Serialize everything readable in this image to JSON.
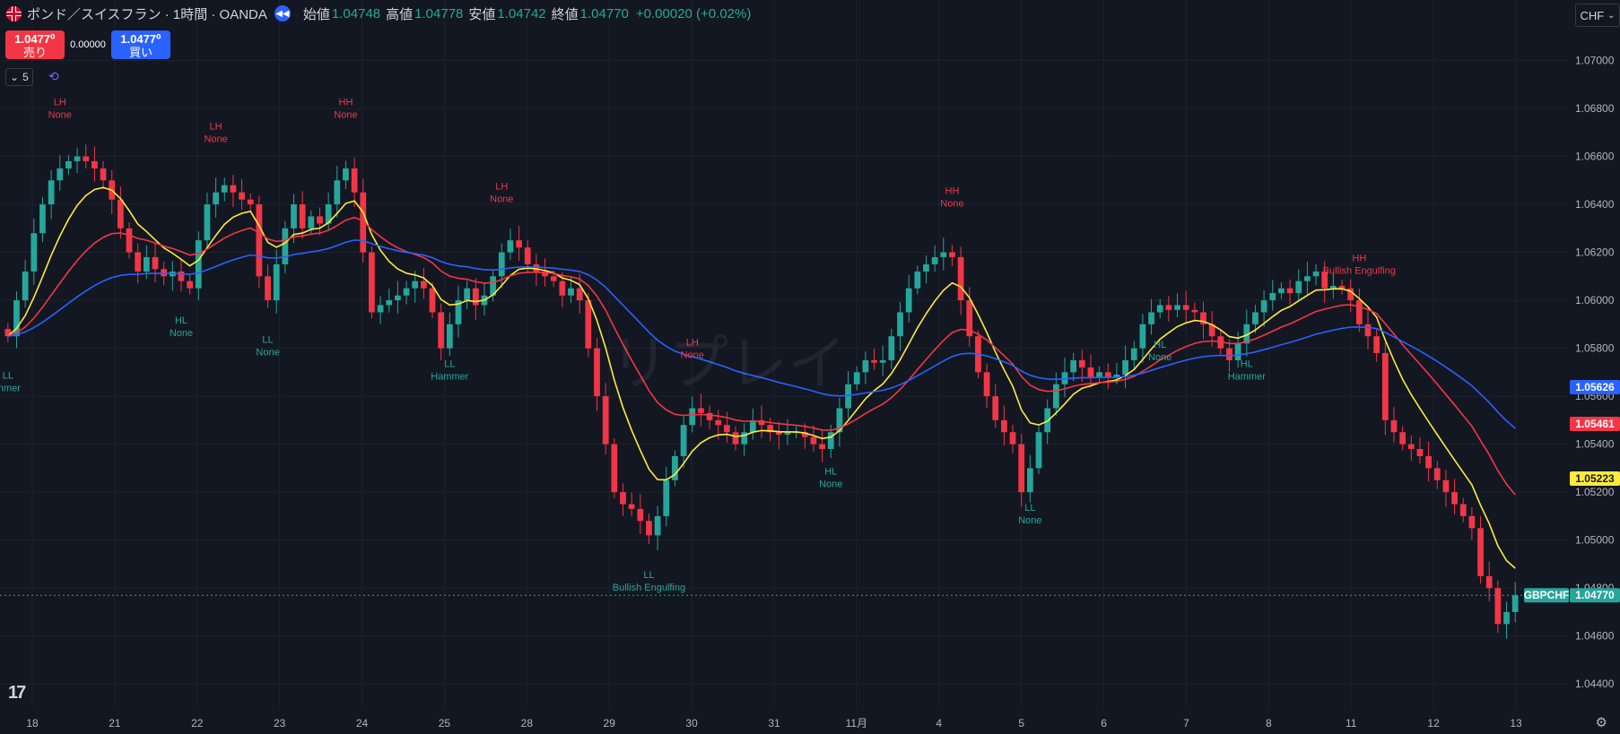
{
  "header": {
    "title": "ポンド／スイスフラン · 1時間 · OANDA",
    "open_label": "始値",
    "open": "1.04748",
    "high_label": "高値",
    "high": "1.04778",
    "low_label": "安値",
    "low": "1.04742",
    "close_label": "終値",
    "close": "1.04770",
    "change": "+0.00020 (+0.02%)"
  },
  "trade": {
    "sell_price": "1.0477⁰",
    "sell_label": "売り",
    "spread": "0.00000",
    "buy_price": "1.0477⁰",
    "buy_label": "買い"
  },
  "indicators_control": {
    "count": "5"
  },
  "currency": {
    "label": "CHF"
  },
  "watermark": "リプレイ",
  "colors": {
    "bg": "#131722",
    "up": "#26a69a",
    "down": "#f23645",
    "blue": "#2962ff",
    "yellow": "#ffeb3b",
    "grid": "#1e222d"
  },
  "chart_data": {
    "type": "candlestick",
    "symbol": "GBPCHF",
    "last_price": "1.04770",
    "ylim": [
      1.043,
      1.0714
    ],
    "y_ticks": [
      "1.07000",
      "1.06800",
      "1.06600",
      "1.06400",
      "1.06200",
      "1.06000",
      "1.05800",
      "1.05600",
      "1.05400",
      "1.05200",
      "1.05000",
      "1.04800",
      "1.04600",
      "1.04400"
    ],
    "x_labels": [
      "18",
      "21",
      "22",
      "23",
      "24",
      "25",
      "28",
      "29",
      "30",
      "31",
      "11月",
      "4",
      "5",
      "6",
      "7",
      "8",
      "11",
      "12",
      "13"
    ],
    "close_series": [
      1.0585,
      1.06,
      1.0612,
      1.0628,
      1.064,
      1.065,
      1.0655,
      1.0658,
      1.066,
      1.0658,
      1.0655,
      1.065,
      1.0642,
      1.063,
      1.062,
      1.0612,
      1.0618,
      1.0613,
      1.061,
      1.0612,
      1.0608,
      1.0605,
      1.0625,
      1.064,
      1.0645,
      1.0648,
      1.0645,
      1.0642,
      1.064,
      1.061,
      1.06,
      1.0615,
      1.063,
      1.064,
      1.063,
      1.0635,
      1.0632,
      1.064,
      1.065,
      1.0655,
      1.0645,
      1.062,
      1.0595,
      1.0598,
      1.06,
      1.0602,
      1.0605,
      1.0608,
      1.0605,
      1.0595,
      1.058,
      1.059,
      1.06,
      1.0605,
      1.0598,
      1.0602,
      1.061,
      1.062,
      1.0625,
      1.0622,
      1.0615,
      1.0612,
      1.061,
      1.0608,
      1.0602,
      1.0605,
      1.06,
      1.058,
      1.056,
      1.054,
      1.052,
      1.0515,
      1.0513,
      1.0508,
      1.0502,
      1.051,
      1.0525,
      1.0535,
      1.0548,
      1.0555,
      1.0553,
      1.055,
      1.0548,
      1.0545,
      1.054,
      1.0545,
      1.055,
      1.0548,
      1.0545,
      1.0544,
      1.0545,
      1.0545,
      1.0543,
      1.054,
      1.0538,
      1.0545,
      1.0555,
      1.0565,
      1.057,
      1.0575,
      1.0574,
      1.0575,
      1.0585,
      1.0595,
      1.0605,
      1.0612,
      1.0615,
      1.0618,
      1.062,
      1.0618,
      1.06,
      1.0585,
      1.057,
      1.056,
      1.055,
      1.0545,
      1.054,
      1.052,
      1.053,
      1.0545,
      1.0555,
      1.0565,
      1.057,
      1.0575,
      1.0572,
      1.0568,
      1.057,
      1.0568,
      1.0569,
      1.0575,
      1.058,
      1.059,
      1.0595,
      1.0598,
      1.0596,
      1.0598,
      1.0596,
      1.0595,
      1.059,
      1.0585,
      1.058,
      1.0575,
      1.0582,
      1.059,
      1.0595,
      1.06,
      1.0603,
      1.0605,
      1.0603,
      1.0608,
      1.061,
      1.0612,
      1.0605,
      1.0606,
      1.0605,
      1.06,
      1.059,
      1.0585,
      1.0578,
      1.055,
      1.0545,
      1.054,
      1.0538,
      1.0535,
      1.053,
      1.0525,
      1.052,
      1.0515,
      1.051,
      1.0505,
      1.0485,
      1.048,
      1.0465,
      1.047,
      1.0477
    ],
    "ma_fast_last": "1.05223",
    "ma_mid_last": "1.05461",
    "ma_slow_last": "1.05626",
    "annotations": [
      {
        "l1": "LH",
        "l2": "None",
        "type": "high",
        "idx": 6
      },
      {
        "l1": "LH",
        "l2": "None",
        "type": "high",
        "idx": 24
      },
      {
        "l1": "HH",
        "l2": "None",
        "type": "high",
        "idx": 39
      },
      {
        "l1": "LH",
        "l2": "None",
        "type": "high",
        "idx": 57
      },
      {
        "l1": "LH",
        "l2": "None",
        "type": "high",
        "idx": 79
      },
      {
        "l1": "HH",
        "l2": "None",
        "type": "high",
        "idx": 109
      },
      {
        "l1": "HH",
        "l2": "Bullish Engulfing",
        "type": "high",
        "idx": 156
      },
      {
        "l1": "LL",
        "l2": "mmer",
        "type": "low",
        "idx": 0
      },
      {
        "l1": "HL",
        "l2": "None",
        "type": "low",
        "idx": 20
      },
      {
        "l1": "LL",
        "l2": "None",
        "type": "low",
        "idx": 30
      },
      {
        "l1": "LL",
        "l2": "Hammer",
        "type": "low",
        "idx": 51
      },
      {
        "l1": "LL",
        "l2": "Bullish Engulfing",
        "type": "low",
        "idx": 74
      },
      {
        "l1": "HL",
        "l2": "None",
        "type": "low",
        "idx": 95
      },
      {
        "l1": "LL",
        "l2": "None",
        "type": "low",
        "idx": 118
      },
      {
        "l1": "HL",
        "l2": "None",
        "type": "low",
        "idx": 133
      },
      {
        "l1": "HL",
        "l2": "Hammer",
        "type": "low",
        "idx": 143
      }
    ]
  }
}
